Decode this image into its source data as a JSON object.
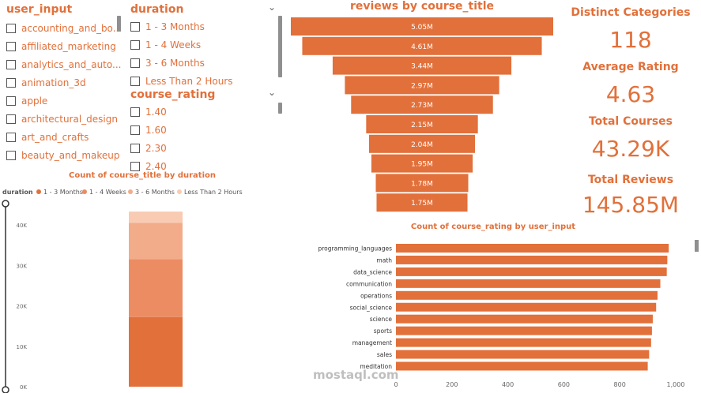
{
  "colors": {
    "accent": "#e2703a",
    "series": [
      "#e2703a",
      "#ec8c62",
      "#f2ac89",
      "#f8cbb2"
    ],
    "axis_text": "#666666"
  },
  "slicer_user_input": {
    "title": "user_input",
    "items": [
      "accounting_and_bo...",
      "affiliated_marketing",
      "analytics_and_auto...",
      "animation_3d",
      "apple",
      "architectural_design",
      "art_and_crafts",
      "beauty_and_makeup"
    ],
    "chevron_icon": "chevron-down-icon"
  },
  "slicer_duration": {
    "title": "duration",
    "items": [
      "1 - 3 Months",
      "1 - 4 Weeks",
      "3 - 6 Months",
      "Less Than 2 Hours"
    ],
    "chevron_icon": "chevron-down-icon"
  },
  "slicer_course_rating": {
    "title": "course_rating",
    "items": [
      "1.40",
      "1.60",
      "2.30",
      "2.40"
    ],
    "chevron_icon": "chevron-down-icon"
  },
  "cards": {
    "distinct_categories": {
      "label": "Distinct Categories",
      "value": "118"
    },
    "average_rating": {
      "label": "Average Rating",
      "value": "4.63"
    },
    "total_courses": {
      "label": "Total Courses",
      "value": "43.29K"
    },
    "total_reviews": {
      "label": "Total Reviews",
      "value": "145.85M"
    }
  },
  "watermark": {
    "text": "mostaql.com"
  },
  "chart_data": [
    {
      "type": "bar",
      "subtype": "funnel",
      "title": "reviews by course_title",
      "values": [
        5.05,
        4.61,
        3.44,
        2.97,
        2.73,
        2.15,
        2.04,
        1.95,
        1.78,
        1.75
      ],
      "labels": [
        "5.05M",
        "4.61M",
        "3.44M",
        "2.97M",
        "2.73M",
        "2.15M",
        "2.04M",
        "1.95M",
        "1.78M",
        "1.75M"
      ],
      "unit": "M"
    },
    {
      "type": "bar",
      "subtype": "stacked-column",
      "title": "Count of course_title by duration",
      "legend_title": "duration",
      "legend_position": "top-left",
      "categories": [
        ""
      ],
      "series": [
        {
          "name": "1 - 3 Months",
          "values": [
            17200
          ]
        },
        {
          "name": "1 - 4 Weeks",
          "values": [
            14300
          ]
        },
        {
          "name": "3 - 6 Months",
          "values": [
            9000
          ]
        },
        {
          "name": "Less Than 2 Hours",
          "values": [
            2790
          ]
        }
      ],
      "ylim": [
        0,
        45000
      ],
      "yticks": [
        0,
        10000,
        20000,
        30000,
        40000
      ],
      "ytick_labels": [
        "0K",
        "10K",
        "20K",
        "30K",
        "40K"
      ],
      "grid": false
    },
    {
      "type": "bar",
      "subtype": "horizontal",
      "title": "Count of course_rating by user_input",
      "categories": [
        "programming_languages",
        "math",
        "data_science",
        "communication",
        "operations",
        "social_science",
        "science",
        "sports",
        "management",
        "sales",
        "meditation"
      ],
      "values": [
        975,
        970,
        968,
        945,
        935,
        930,
        918,
        915,
        912,
        905,
        900
      ],
      "xlim": [
        0,
        1000
      ],
      "xticks": [
        0,
        200,
        400,
        600,
        800,
        1000
      ],
      "xtick_labels": [
        "0",
        "200",
        "400",
        "600",
        "800",
        "1,000"
      ],
      "grid": false
    }
  ]
}
